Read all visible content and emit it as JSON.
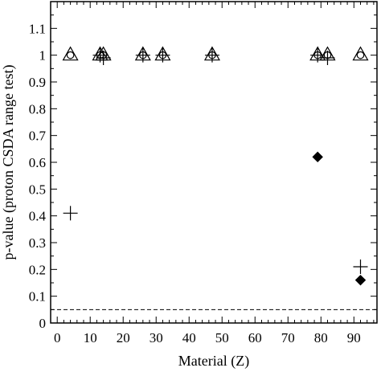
{
  "chart_data": {
    "type": "scatter",
    "xlabel": "Material (Z)",
    "ylabel": "p-value (proton CSDA range test)",
    "xlim": [
      -2,
      97
    ],
    "ylim": [
      0,
      1.2
    ],
    "xticks": [
      0,
      10,
      20,
      30,
      40,
      50,
      60,
      70,
      80,
      90
    ],
    "yticks": [
      0,
      0.1,
      0.2,
      0.3,
      0.4,
      0.5,
      0.6,
      0.7,
      0.8,
      0.9,
      1,
      1.1
    ],
    "xtick_labels": [
      "0",
      "10",
      "20",
      "30",
      "40",
      "50",
      "60",
      "70",
      "80",
      "90"
    ],
    "ytick_labels": [
      "0",
      "0.1",
      "0.2",
      "0.3",
      "0.4",
      "0.5",
      "0.6",
      "0.7",
      "0.8",
      "0.9",
      "1",
      "1.1"
    ],
    "grid": false,
    "series": [
      {
        "marker": "triangle-open",
        "x": [
          4,
          13,
          14,
          26,
          32,
          47,
          79,
          82,
          92
        ],
        "y": [
          1,
          1,
          1,
          1,
          1,
          1,
          1,
          1,
          1
        ]
      },
      {
        "marker": "circle-open",
        "x": [
          4,
          13,
          14,
          26,
          32,
          47,
          79,
          82,
          92
        ],
        "y": [
          1,
          1,
          1,
          1,
          1,
          1,
          1,
          1,
          1
        ]
      },
      {
        "marker": "plus",
        "x": [
          4,
          13,
          14,
          26,
          32,
          47,
          79,
          82,
          92
        ],
        "y": [
          0.41,
          1,
          0.99,
          1,
          1,
          1,
          1,
          0.99,
          0.21
        ]
      },
      {
        "marker": "diamond-filled",
        "x": [
          79,
          92
        ],
        "y": [
          0.62,
          0.16
        ]
      }
    ],
    "reference_line": {
      "y": 0.05,
      "style": "dashed"
    }
  }
}
